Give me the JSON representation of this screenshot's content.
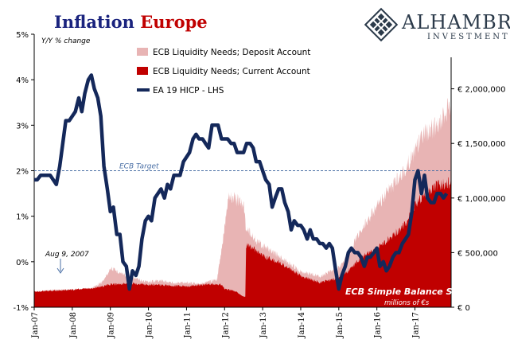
{
  "header": {
    "title_part1": "Inflation ",
    "title_part2": "Europe",
    "title_color1": "#1a237e",
    "title_color2": "#c00000",
    "logo_name": "ALHAMBRA",
    "logo_sub": "INVESTMENTS"
  },
  "chart_data": {
    "type": "line+area",
    "title": "Inflation Europe",
    "ylabel_left": "Y/Y % change",
    "left_axis": {
      "ticks": [
        "5%",
        "4%",
        "3%",
        "2%",
        "1%",
        "0%",
        "-1%"
      ],
      "min": -1,
      "max": 5
    },
    "right_axis": {
      "ticks": [
        "€ 2,000,000",
        "€ 1,500,000",
        "€ 1,000,000",
        "€ 500,000",
        "€ 0"
      ],
      "min": 0,
      "max": 2500000
    },
    "x_ticks": [
      "Jan-07",
      "Jan-08",
      "Jan-09",
      "Jan-10",
      "Jan-11",
      "Jan-12",
      "Jan-13",
      "Jan-14",
      "Jan-15",
      "Jan-16",
      "Jan-17"
    ],
    "legend": [
      {
        "name": "ECB Liquidity Needs; Deposit Account",
        "color": "#e8b4b4"
      },
      {
        "name": "ECB Liquidity Needs; Current Account",
        "color": "#c00000"
      },
      {
        "name": "EA 19 HICP - LHS",
        "color": "#14285a"
      }
    ],
    "series": [
      {
        "name": "EA 19 HICP - LHS",
        "axis": "left",
        "x": [
          2007.0,
          2007.08,
          2007.17,
          2007.25,
          2007.33,
          2007.42,
          2007.5,
          2007.58,
          2007.67,
          2007.75,
          2007.83,
          2007.92,
          2008.0,
          2008.08,
          2008.17,
          2008.25,
          2008.33,
          2008.42,
          2008.5,
          2008.58,
          2008.67,
          2008.75,
          2008.83,
          2008.92,
          2009.0,
          2009.08,
          2009.17,
          2009.25,
          2009.33,
          2009.42,
          2009.5,
          2009.58,
          2009.67,
          2009.75,
          2009.83,
          2009.92,
          2010.0,
          2010.08,
          2010.17,
          2010.25,
          2010.33,
          2010.42,
          2010.5,
          2010.58,
          2010.67,
          2010.75,
          2010.83,
          2010.92,
          2011.0,
          2011.08,
          2011.17,
          2011.25,
          2011.33,
          2011.42,
          2011.5,
          2011.58,
          2011.67,
          2011.75,
          2011.83,
          2011.92,
          2012.0,
          2012.08,
          2012.17,
          2012.25,
          2012.33,
          2012.42,
          2012.5,
          2012.58,
          2012.67,
          2012.75,
          2012.83,
          2012.92,
          2013.0,
          2013.08,
          2013.17,
          2013.25,
          2013.33,
          2013.42,
          2013.5,
          2013.58,
          2013.67,
          2013.75,
          2013.83,
          2013.92,
          2014.0,
          2014.08,
          2014.17,
          2014.25,
          2014.33,
          2014.42,
          2014.5,
          2014.58,
          2014.67,
          2014.75,
          2014.83,
          2014.92,
          2015.0,
          2015.08,
          2015.17,
          2015.25,
          2015.33,
          2015.42,
          2015.5,
          2015.58,
          2015.67,
          2015.75,
          2015.83,
          2015.92,
          2016.0,
          2016.08,
          2016.17,
          2016.25,
          2016.33,
          2016.42,
          2016.5,
          2016.58,
          2016.67,
          2016.75,
          2016.83,
          2016.92,
          2017.0,
          2017.08,
          2017.17,
          2017.25,
          2017.33,
          2017.42,
          2017.5,
          2017.58,
          2017.67,
          2017.75,
          2017.83
        ],
        "values": [
          1.8,
          1.8,
          1.9,
          1.9,
          1.9,
          1.9,
          1.8,
          1.7,
          2.1,
          2.6,
          3.1,
          3.1,
          3.2,
          3.3,
          3.6,
          3.3,
          3.7,
          4.0,
          4.1,
          3.8,
          3.6,
          3.2,
          2.1,
          1.6,
          1.1,
          1.2,
          0.6,
          0.6,
          0.0,
          -0.1,
          -0.6,
          -0.2,
          -0.3,
          -0.1,
          0.5,
          0.9,
          1.0,
          0.9,
          1.4,
          1.5,
          1.6,
          1.4,
          1.7,
          1.6,
          1.9,
          1.9,
          1.9,
          2.2,
          2.3,
          2.4,
          2.7,
          2.8,
          2.7,
          2.7,
          2.6,
          2.5,
          3.0,
          3.0,
          3.0,
          2.7,
          2.7,
          2.7,
          2.6,
          2.6,
          2.4,
          2.4,
          2.4,
          2.6,
          2.6,
          2.5,
          2.2,
          2.2,
          2.0,
          1.8,
          1.7,
          1.2,
          1.4,
          1.6,
          1.6,
          1.3,
          1.1,
          0.7,
          0.9,
          0.8,
          0.8,
          0.7,
          0.5,
          0.7,
          0.5,
          0.5,
          0.4,
          0.4,
          0.3,
          0.4,
          0.3,
          -0.2,
          -0.6,
          -0.3,
          -0.1,
          0.2,
          0.3,
          0.2,
          0.2,
          0.1,
          -0.1,
          0.1,
          0.1,
          0.2,
          0.3,
          -0.1,
          0.0,
          -0.2,
          -0.1,
          0.1,
          0.2,
          0.2,
          0.4,
          0.5,
          0.6,
          1.1,
          1.8,
          2.0,
          1.5,
          1.9,
          1.4,
          1.3,
          1.3,
          1.5,
          1.5,
          1.4,
          1.5
        ]
      },
      {
        "name": "ECB Liquidity Needs; Deposit Account",
        "axis": "right",
        "note": "stacked total (current + deposit), EUR millions",
        "x": [
          2007.0,
          2007.5,
          2008.0,
          2008.5,
          2008.8,
          2009.0,
          2009.3,
          2009.5,
          2009.8,
          2010.0,
          2010.3,
          2010.6,
          2011.0,
          2011.4,
          2011.8,
          2011.95,
          2012.1,
          2012.3,
          2012.5,
          2012.56,
          2012.8,
          2013.0,
          2013.5,
          2014.0,
          2014.5,
          2015.0,
          2015.25,
          2015.5,
          2015.75,
          2016.0,
          2016.25,
          2016.5,
          2016.75,
          2017.0,
          2017.25,
          2017.5,
          2017.75,
          2017.9
        ],
        "values": [
          150000,
          170000,
          170000,
          180000,
          250000,
          380000,
          330000,
          300000,
          260000,
          250000,
          260000,
          240000,
          240000,
          230000,
          270000,
          620000,
          1100000,
          1050000,
          1000000,
          780000,
          660000,
          600000,
          480000,
          350000,
          300000,
          380000,
          520000,
          700000,
          850000,
          980000,
          1100000,
          1230000,
          1350000,
          1520000,
          1680000,
          1750000,
          1850000,
          1950000
        ]
      },
      {
        "name": "ECB Liquidity Needs; Current Account",
        "axis": "right",
        "note": "EUR millions",
        "x": [
          2007.0,
          2007.5,
          2008.0,
          2008.5,
          2009.0,
          2009.5,
          2010.0,
          2010.5,
          2011.0,
          2011.5,
          2011.9,
          2012.0,
          2012.3,
          2012.5,
          2012.55,
          2012.56,
          2012.8,
          2013.0,
          2013.5,
          2014.0,
          2014.5,
          2015.0,
          2015.25,
          2015.5,
          2015.75,
          2016.0,
          2016.25,
          2016.5,
          2016.75,
          2017.0,
          2017.25,
          2017.5,
          2017.75,
          2017.9
        ],
        "values": [
          150000,
          160000,
          170000,
          180000,
          220000,
          230000,
          220000,
          210000,
          200000,
          220000,
          220000,
          180000,
          150000,
          100000,
          100000,
          600000,
          560000,
          500000,
          420000,
          300000,
          240000,
          280000,
          350000,
          450000,
          520000,
          560000,
          640000,
          720000,
          800000,
          980000,
          1100000,
          1160000,
          1190000,
          1200000
        ]
      }
    ],
    "reference_line": {
      "label": "ECB Target",
      "value": 2
    },
    "annotations": [
      {
        "text": "Aug 9, 2007"
      },
      {
        "text": "ECB Simple Balance Sheet"
      },
      {
        "text": "millions of €s"
      }
    ]
  }
}
